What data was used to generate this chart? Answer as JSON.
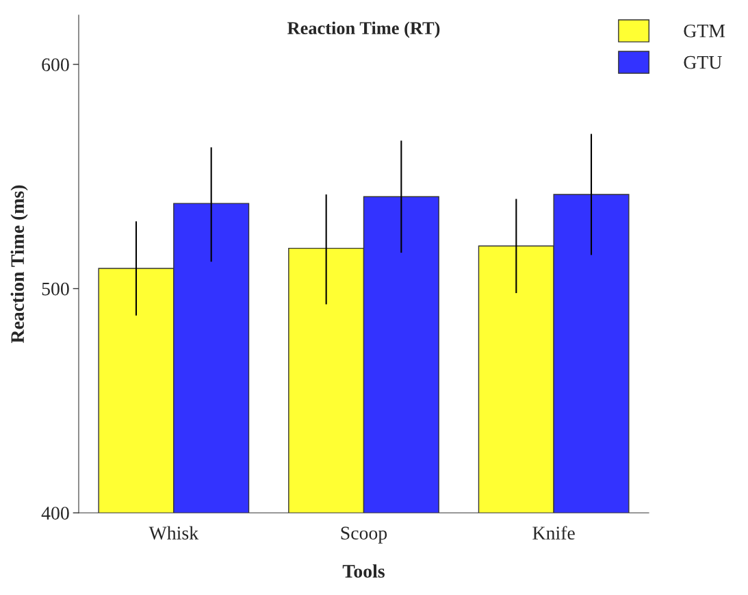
{
  "chart_data": {
    "type": "bar",
    "title": "Reaction Time (RT)",
    "xlabel": "Tools",
    "ylabel": "Reaction Time (ms)",
    "categories": [
      "Whisk",
      "Scoop",
      "Knife"
    ],
    "series": [
      {
        "name": "GTM",
        "color": "#ffff33",
        "values": [
          509,
          518,
          519
        ],
        "errors": [
          [
            488,
            530
          ],
          [
            493,
            542
          ],
          [
            498,
            540
          ]
        ]
      },
      {
        "name": "GTU",
        "color": "#3333ff",
        "values": [
          538,
          541,
          542
        ],
        "errors": [
          [
            512,
            563
          ],
          [
            516,
            566
          ],
          [
            515,
            569
          ]
        ]
      }
    ],
    "ylim": [
      400,
      622
    ],
    "yticks": [
      400,
      500,
      600
    ],
    "grid": false,
    "legend": "top right"
  }
}
